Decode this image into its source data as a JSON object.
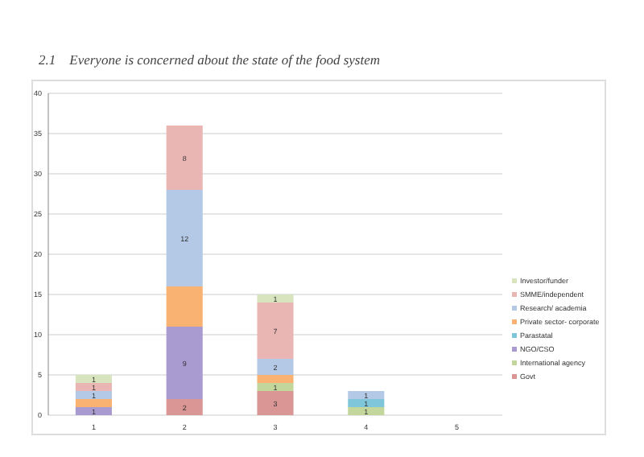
{
  "chart_data": {
    "type": "bar",
    "title": "2.1    Everyone is concerned about the state of the food system",
    "categories": [
      "1",
      "2",
      "3",
      "4",
      "5"
    ],
    "stacked": true,
    "ylim": [
      0,
      40
    ],
    "yticks": [
      0,
      5,
      10,
      15,
      20,
      25,
      30,
      35,
      40
    ],
    "grid": "y",
    "legend": "right",
    "series": [
      {
        "name": "Govt",
        "color": "#d99694",
        "values": [
          0,
          2,
          3,
          0,
          0
        ],
        "value_labels": [
          null,
          "2",
          "3",
          null,
          null
        ]
      },
      {
        "name": "International agency",
        "color": "#c3d69b",
        "values": [
          0,
          0,
          1,
          1,
          0
        ],
        "value_labels": [
          null,
          null,
          "1",
          "1",
          null
        ]
      },
      {
        "name": "NGO/CSO",
        "color": "#a99bd0",
        "values": [
          1,
          9,
          0,
          0,
          0
        ],
        "value_labels": [
          "1",
          "9",
          null,
          null,
          null
        ]
      },
      {
        "name": "Parastatal",
        "color": "#7fc6da",
        "values": [
          0,
          0,
          0,
          1,
          0
        ],
        "value_labels": [
          null,
          null,
          null,
          "1",
          null
        ]
      },
      {
        "name": "Private sector- corporate",
        "color": "#f9b272",
        "values": [
          1,
          5,
          1,
          0,
          0
        ],
        "value_labels": [
          null,
          null,
          null,
          null,
          null
        ]
      },
      {
        "name": "Research/ academia",
        "color": "#b4c9e6",
        "values": [
          1,
          12,
          2,
          1,
          0
        ],
        "value_labels": [
          "1",
          "12",
          "2",
          "1",
          null
        ]
      },
      {
        "name": "SMME/independent",
        "color": "#eab6b4",
        "values": [
          1,
          8,
          7,
          0,
          0
        ],
        "value_labels": [
          "1",
          "8",
          "7",
          null,
          null
        ]
      },
      {
        "name": "Investor/funder",
        "color": "#d7e4bd",
        "values": [
          1,
          0,
          1,
          0,
          0
        ],
        "value_labels": [
          "1",
          null,
          "1",
          null,
          null
        ]
      }
    ]
  }
}
